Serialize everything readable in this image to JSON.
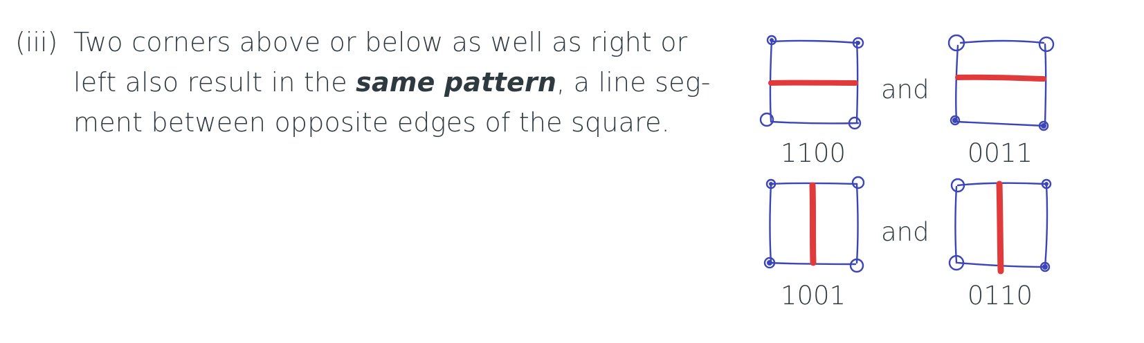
{
  "item": {
    "marker": "(iii)",
    "line1": "Two corners above or below as well as right or",
    "line2_before": "left also result in the ",
    "line2_emphasis": "same pattern",
    "line2_after": ", a line seg-",
    "line3": "ment between opposite edges of the square."
  },
  "figure": {
    "connector": "and",
    "captions": {
      "top_left": "1100",
      "top_right": "0011",
      "bottom_left": "1001",
      "bottom_right": "0110"
    }
  },
  "colors": {
    "text": "#2e3a40",
    "sketch_ink": "#3b45b8",
    "highlight": "#e03a3a"
  }
}
